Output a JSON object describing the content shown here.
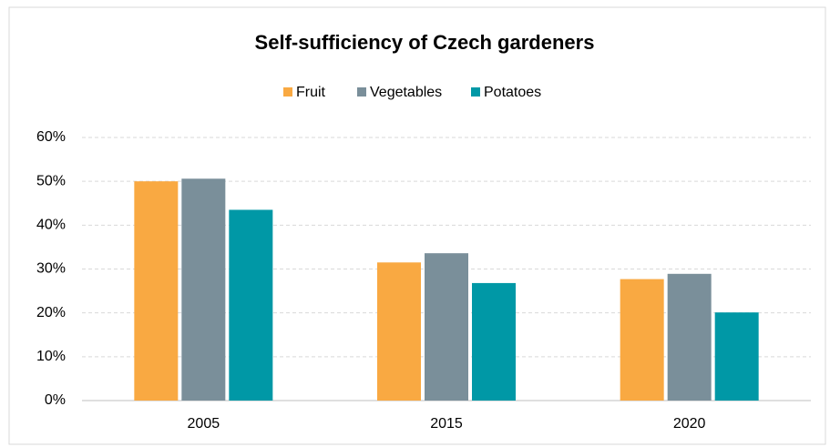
{
  "chart_data": {
    "type": "bar",
    "title": "Self-sufficiency of Czech gardeners",
    "categories": [
      "2005",
      "2015",
      "2020"
    ],
    "series": [
      {
        "name": "Fruit",
        "color": "#f9a942",
        "values": [
          50,
          31.5,
          27.7
        ]
      },
      {
        "name": "Vegetables",
        "color": "#7a8f9a",
        "values": [
          50.6,
          33.6,
          28.9
        ]
      },
      {
        "name": "Potatoes",
        "color": "#0098a6",
        "values": [
          43.5,
          26.8,
          20.1
        ]
      }
    ],
    "ylim": [
      0,
      60
    ],
    "yticks": [
      {
        "value": 0,
        "label": "0%"
      },
      {
        "value": 10,
        "label": "10%"
      },
      {
        "value": 20,
        "label": "20%"
      },
      {
        "value": 30,
        "label": "30%"
      },
      {
        "value": 40,
        "label": "40%"
      },
      {
        "value": 50,
        "label": "50%"
      },
      {
        "value": 60,
        "label": "60%"
      }
    ],
    "grid": true,
    "legend": "top"
  }
}
